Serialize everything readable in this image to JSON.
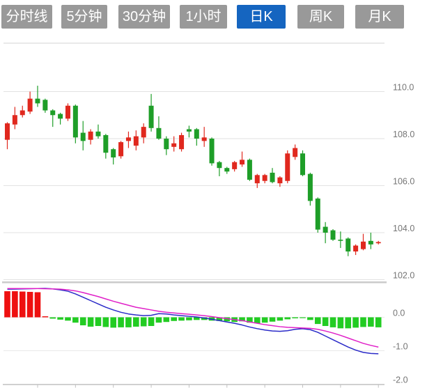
{
  "tabs": {
    "active_index": 4,
    "items": [
      {
        "label": "分时线"
      },
      {
        "label": "5分钟"
      },
      {
        "label": "30分钟"
      },
      {
        "label": "1小时"
      },
      {
        "label": "日K"
      },
      {
        "label": "周K"
      },
      {
        "label": "月K"
      }
    ]
  },
  "colors": {
    "tab_inactive": "#999999",
    "tab_active": "#1565c0",
    "tab_text": "#ffffff",
    "candle_up_red": "#e0281e",
    "candle_down_green": "#1e9e28",
    "macd_bar_red": "#ee1010",
    "macd_bar_green": "#22cc22",
    "dif_line_blue": "#2a2ac8",
    "dea_line_magenta": "#e020c8",
    "gridline": "#e2e2e2",
    "gridline_light": "#e9e9e9",
    "separator": "#cbcbcb",
    "axis_line": "#c0c0c0",
    "axis_text": "#757575"
  },
  "chart_data": {
    "type": "candlestick+macd",
    "price_axis": {
      "side": "right",
      "ticks": [
        110.0,
        108.0,
        106.0,
        104.0,
        102.0
      ],
      "tick_labels": [
        "110.0",
        "108.0",
        "106.0",
        "104.0",
        "102.0"
      ],
      "range_shown": [
        101.9,
        112.0
      ],
      "grid": true
    },
    "macd_axis": {
      "side": "right",
      "ticks": [
        0.0,
        -1.0,
        -2.0
      ],
      "tick_labels": [
        "0.0",
        "-1.0",
        "-2.0"
      ],
      "range_shown": [
        -2.1,
        1.0
      ],
      "grid": true
    },
    "x_axis": {
      "tick_every_n_candles": 5,
      "labels_visible": false
    },
    "candles_format": [
      "open",
      "high",
      "low",
      "close"
    ],
    "up_color_rule": "close >= open is red (CN convention), close < open is green",
    "candles": [
      [
        107.95,
        108.7,
        107.55,
        108.65
      ],
      [
        108.6,
        109.35,
        108.4,
        109.0
      ],
      [
        109.0,
        109.4,
        108.9,
        109.2
      ],
      [
        109.15,
        110.0,
        109.05,
        109.7
      ],
      [
        109.7,
        110.25,
        109.35,
        109.5
      ],
      [
        109.65,
        109.7,
        109.1,
        109.2
      ],
      [
        109.2,
        109.25,
        108.5,
        109.0
      ],
      [
        109.05,
        109.1,
        108.6,
        108.85
      ],
      [
        108.85,
        109.5,
        108.75,
        109.4
      ],
      [
        109.4,
        109.45,
        107.8,
        108.05
      ],
      [
        108.25,
        108.75,
        107.5,
        107.9
      ],
      [
        107.95,
        108.4,
        107.75,
        108.3
      ],
      [
        108.3,
        108.6,
        108.0,
        108.1
      ],
      [
        108.15,
        108.2,
        107.15,
        107.4
      ],
      [
        107.55,
        107.6,
        106.9,
        107.2
      ],
      [
        107.25,
        107.9,
        107.15,
        107.85
      ],
      [
        107.9,
        108.3,
        107.6,
        108.05
      ],
      [
        107.7,
        108.35,
        107.5,
        108.1
      ],
      [
        108.05,
        108.65,
        107.8,
        108.5
      ],
      [
        109.4,
        109.9,
        108.3,
        108.45
      ],
      [
        108.45,
        108.95,
        107.95,
        108.0
      ],
      [
        108.0,
        108.1,
        107.3,
        107.55
      ],
      [
        107.65,
        108.1,
        107.45,
        107.8
      ],
      [
        107.55,
        108.25,
        107.45,
        108.15
      ],
      [
        108.4,
        108.55,
        108.05,
        108.3
      ],
      [
        108.4,
        108.45,
        107.7,
        108.0
      ],
      [
        107.9,
        108.5,
        107.65,
        108.05
      ],
      [
        108.0,
        108.05,
        106.85,
        106.95
      ],
      [
        107.0,
        107.05,
        106.4,
        106.75
      ],
      [
        106.75,
        106.8,
        106.5,
        106.6
      ],
      [
        106.7,
        107.05,
        106.6,
        107.0
      ],
      [
        106.9,
        107.45,
        106.8,
        107.1
      ],
      [
        107.1,
        107.15,
        106.2,
        106.25
      ],
      [
        106.1,
        106.5,
        105.9,
        106.45
      ],
      [
        106.2,
        106.5,
        106.1,
        106.45
      ],
      [
        106.55,
        106.75,
        106.1,
        106.15
      ],
      [
        106.1,
        106.4,
        105.95,
        106.35
      ],
      [
        106.2,
        107.5,
        106.1,
        107.37
      ],
      [
        107.22,
        107.75,
        107.1,
        107.6
      ],
      [
        107.37,
        107.5,
        106.4,
        106.45
      ],
      [
        106.5,
        106.55,
        105.15,
        105.35
      ],
      [
        105.45,
        105.5,
        104.0,
        104.13
      ],
      [
        104.25,
        104.45,
        103.55,
        104.0
      ],
      [
        104.1,
        104.15,
        103.65,
        103.7
      ],
      [
        103.7,
        104.05,
        103.35,
        103.68
      ],
      [
        103.75,
        103.8,
        103.0,
        103.2
      ],
      [
        103.2,
        103.5,
        103.05,
        103.45
      ],
      [
        103.3,
        103.95,
        103.25,
        103.62
      ],
      [
        103.65,
        104.0,
        103.3,
        103.5
      ],
      [
        103.55,
        103.65,
        103.5,
        103.6
      ]
    ],
    "macd": {
      "hist": [
        0.78,
        0.78,
        0.77,
        0.76,
        0.75,
        0.03,
        -0.04,
        -0.07,
        -0.1,
        -0.16,
        -0.24,
        -0.28,
        -0.26,
        -0.29,
        -0.31,
        -0.3,
        -0.3,
        -0.28,
        -0.27,
        -0.26,
        -0.16,
        -0.14,
        -0.11,
        -0.1,
        -0.09,
        -0.08,
        -0.08,
        -0.1,
        -0.11,
        -0.12,
        -0.14,
        -0.12,
        -0.16,
        -0.18,
        -0.16,
        -0.13,
        -0.1,
        -0.06,
        -0.03,
        -0.02,
        -0.08,
        -0.2,
        -0.26,
        -0.3,
        -0.33,
        -0.33,
        -0.31,
        -0.29,
        -0.28,
        -0.3
      ],
      "dif": [
        0.84,
        0.845,
        0.85,
        0.855,
        0.86,
        0.865,
        0.85,
        0.82,
        0.78,
        0.7,
        0.6,
        0.5,
        0.4,
        0.3,
        0.22,
        0.15,
        0.1,
        0.07,
        0.05,
        0.06,
        0.11,
        0.1,
        0.07,
        0.05,
        0.03,
        0.01,
        -0.02,
        -0.06,
        -0.1,
        -0.14,
        -0.18,
        -0.23,
        -0.29,
        -0.34,
        -0.38,
        -0.41,
        -0.42,
        -0.4,
        -0.36,
        -0.34,
        -0.37,
        -0.45,
        -0.56,
        -0.67,
        -0.78,
        -0.89,
        -0.98,
        -1.05,
        -1.08,
        -1.09
      ],
      "dea": [
        0.86,
        0.86,
        0.86,
        0.86,
        0.86,
        0.855,
        0.85,
        0.84,
        0.82,
        0.79,
        0.74,
        0.68,
        0.62,
        0.55,
        0.48,
        0.42,
        0.36,
        0.3,
        0.26,
        0.22,
        0.18,
        0.15,
        0.13,
        0.11,
        0.09,
        0.07,
        0.05,
        0.02,
        -0.01,
        -0.04,
        -0.07,
        -0.1,
        -0.14,
        -0.18,
        -0.22,
        -0.25,
        -0.28,
        -0.3,
        -0.31,
        -0.32,
        -0.33,
        -0.36,
        -0.41,
        -0.47,
        -0.54,
        -0.62,
        -0.7,
        -0.78,
        -0.84,
        -0.89
      ]
    }
  }
}
